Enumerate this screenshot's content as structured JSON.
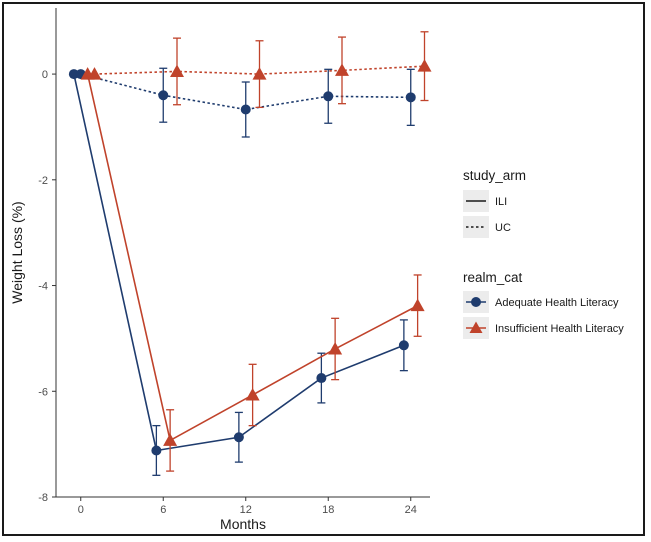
{
  "chart_data": {
    "type": "line",
    "xlabel": "Months",
    "ylabel": "Weight Loss (%)",
    "x_ticks": [
      0,
      6,
      12,
      18,
      24
    ],
    "y_ticks": [
      0,
      -2,
      -4,
      -6,
      -8
    ],
    "xlim": [
      -1.8,
      25.4
    ],
    "ylim": [
      -8.0,
      1.25
    ],
    "legends": {
      "study_arm": {
        "title": "study_arm",
        "items": [
          {
            "label": "ILI",
            "linetype": "solid"
          },
          {
            "label": "UC",
            "linetype": "dashed"
          }
        ]
      },
      "realm_cat": {
        "title": "realm_cat",
        "items": [
          {
            "label": "Adequate Health Literacy",
            "color": "#1f3c6e",
            "shape": "circle"
          },
          {
            "label": "Insufficient Health Literacy",
            "color": "#c0432b",
            "shape": "triangle"
          }
        ]
      }
    },
    "series": [
      {
        "name": "Adequate Health Literacy / ILI",
        "group": "Adequate Health Literacy",
        "arm": "ILI",
        "color": "#1f3c6e",
        "shape": "circle",
        "linetype": "solid",
        "x": [
          -0.5,
          5.5,
          11.5,
          17.5,
          23.5
        ],
        "y": [
          0,
          -7.12,
          -6.87,
          -5.75,
          -5.13
        ],
        "err": [
          0,
          0.47,
          0.47,
          0.47,
          0.48
        ]
      },
      {
        "name": "Adequate Health Literacy / UC",
        "group": "Adequate Health Literacy",
        "arm": "UC",
        "color": "#1f3c6e",
        "shape": "circle",
        "linetype": "dashed",
        "x": [
          0.0,
          6.0,
          12.0,
          18.0,
          24.0
        ],
        "y": [
          0,
          -0.4,
          -0.67,
          -0.42,
          -0.44
        ],
        "err": [
          0,
          0.51,
          0.52,
          0.51,
          0.53
        ]
      },
      {
        "name": "Insufficient Health Literacy / ILI",
        "group": "Insufficient Health Literacy",
        "arm": "ILI",
        "color": "#c0432b",
        "shape": "triangle",
        "linetype": "solid",
        "x": [
          0.5,
          6.5,
          12.5,
          18.5,
          24.5
        ],
        "y": [
          0,
          -6.93,
          -6.07,
          -5.2,
          -4.38
        ],
        "err": [
          0,
          0.58,
          0.58,
          0.58,
          0.58
        ]
      },
      {
        "name": "Insufficient Health Literacy / UC",
        "group": "Insufficient Health Literacy",
        "arm": "UC",
        "color": "#c0432b",
        "shape": "triangle",
        "linetype": "dashed",
        "x": [
          1.0,
          7.0,
          13.0,
          19.0,
          25.0
        ],
        "y": [
          0,
          0.05,
          0.0,
          0.07,
          0.15
        ],
        "err": [
          0,
          0.63,
          0.63,
          0.63,
          0.65
        ]
      }
    ]
  }
}
